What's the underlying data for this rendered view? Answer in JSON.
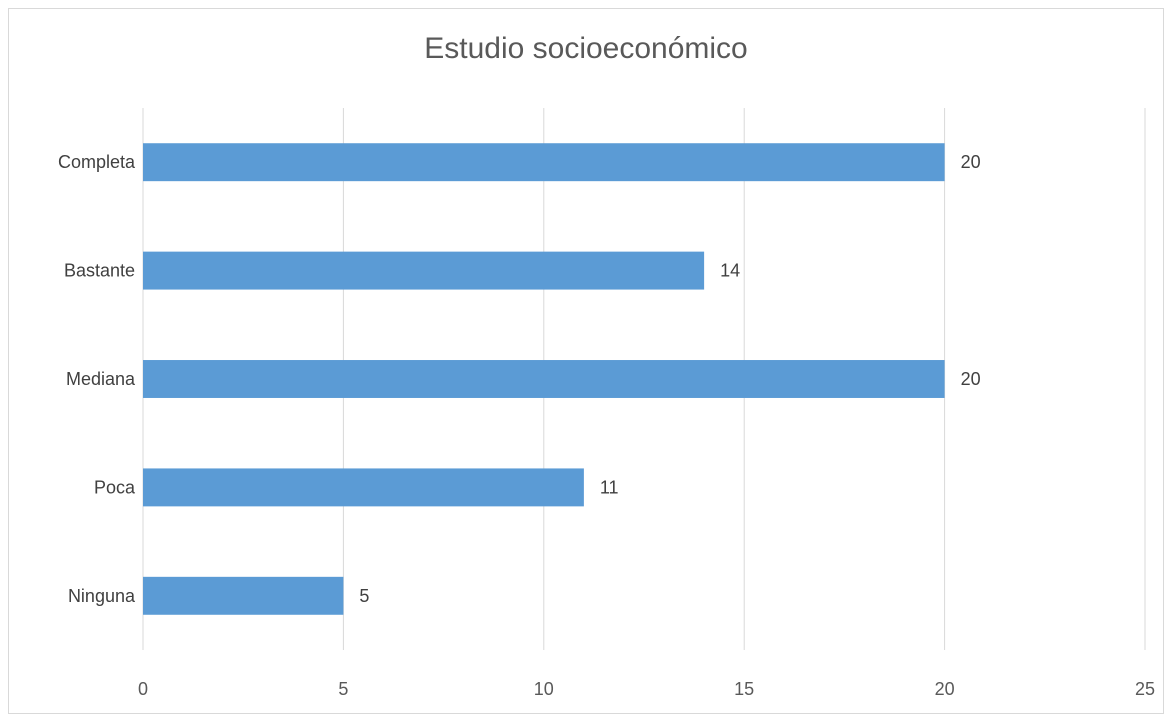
{
  "chart_data": {
    "type": "bar",
    "orientation": "horizontal",
    "title": "Estudio socioeconómico",
    "categories": [
      "Completa",
      "Bastante",
      "Mediana",
      "Poca",
      "Ninguna"
    ],
    "values": [
      20,
      14,
      20,
      11,
      5
    ],
    "xlim": [
      0,
      25
    ],
    "x_ticks": [
      0,
      5,
      10,
      15,
      20,
      25
    ],
    "grid": "vertical",
    "legend": "none",
    "bar_color": "#5b9bd5",
    "gridline_color": "#d9d9d9",
    "data_labels": true
  }
}
